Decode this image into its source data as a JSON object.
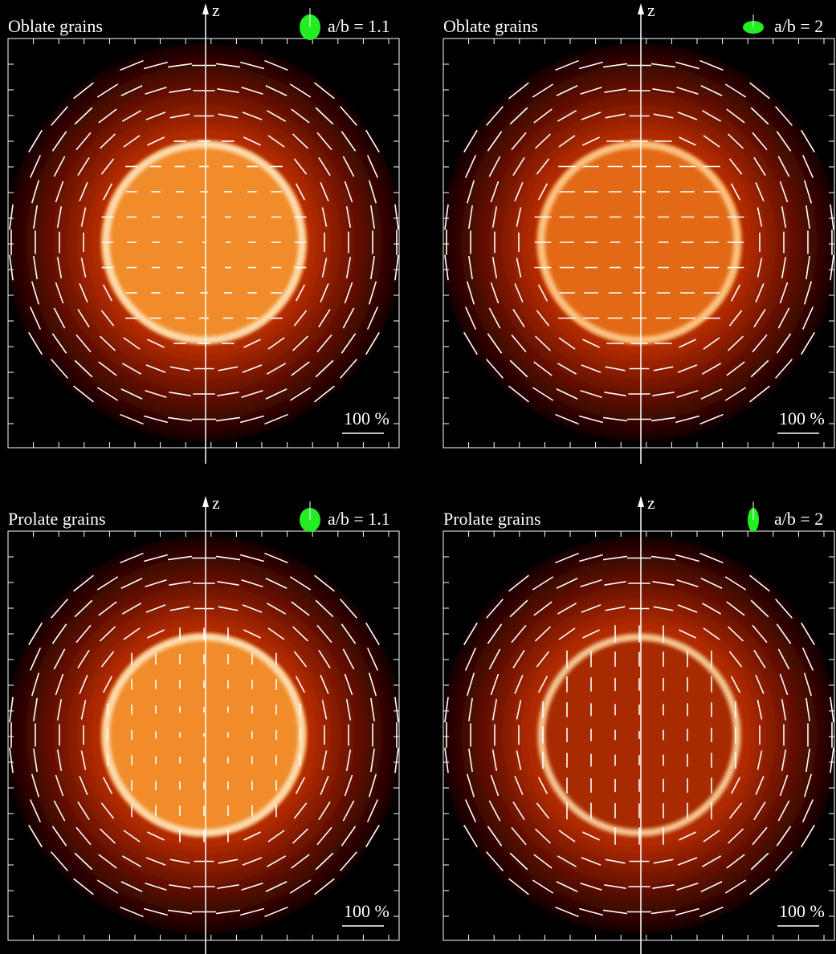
{
  "panels": [
    {
      "title": "Oblate grains",
      "ratio": "a/b = 1.1",
      "axis": "z",
      "scale": "100 %"
    },
    {
      "title": "Oblate grains",
      "ratio": "a/b = 2",
      "axis": "z",
      "scale": "100 %"
    },
    {
      "title": "Prolate grains",
      "ratio": "a/b = 1.1",
      "axis": "z",
      "scale": "100 %"
    },
    {
      "title": "Prolate grains",
      "ratio": "a/b = 2",
      "axis": "z",
      "scale": "100 %"
    }
  ]
}
